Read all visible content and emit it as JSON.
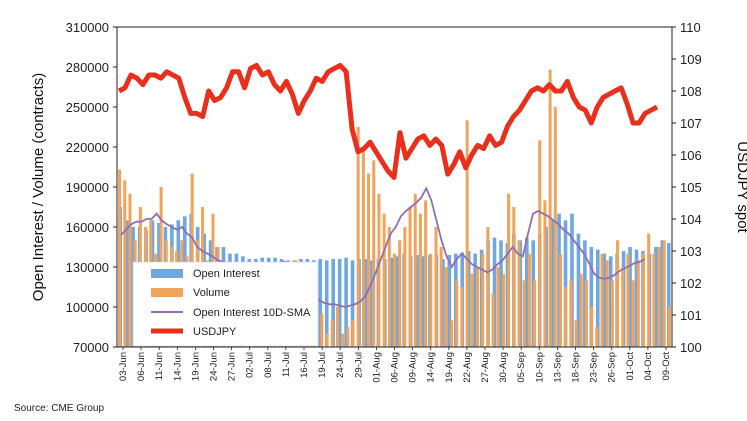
{
  "chart_data": {
    "type": "bar",
    "source": "Source: CME Group",
    "ylabel_left": "Open Interest / Volume (contracts)",
    "ylabel_right": "USDJPY spot",
    "ylim_left": [
      70000,
      310000
    ],
    "yticks_left": [
      "310000",
      "280000",
      "250000",
      "220000",
      "190000",
      "160000",
      "130000",
      "100000",
      "70000"
    ],
    "ylim_right": [
      100,
      110
    ],
    "yticks_right": [
      "110",
      "109",
      "108",
      "107",
      "106",
      "105",
      "104",
      "103",
      "102",
      "101",
      "100"
    ],
    "x_tick_labels": [
      "03-Jun",
      "06-Jun",
      "11-Jun",
      "14-Jun",
      "19-Jun",
      "24-Jun",
      "27-Jun",
      "02-Jul",
      "08-Jul",
      "11-Jul",
      "16-Jul",
      "19-Jul",
      "24-Jul",
      "29-Jul",
      "01-Aug",
      "06-Aug",
      "09-Aug",
      "14-Aug",
      "19-Aug",
      "22-Aug",
      "27-Aug",
      "30-Aug",
      "05-Sep",
      "10-Sep",
      "13-Sep",
      "18-Sep",
      "23-Sep",
      "26-Sep",
      "01-Oct",
      "04-Oct",
      "09-Oct"
    ],
    "legend": {
      "placement": "bottom-left inside plot",
      "items": [
        {
          "label": "Open Interest",
          "kind": "bar",
          "color": "#6fa8e0"
        },
        {
          "label": "Volume",
          "kind": "bar",
          "color": "#f0a35a"
        },
        {
          "label": "Open Interest 10D-SMA",
          "kind": "line",
          "color": "#8e6fb5"
        },
        {
          "label": "USDJPY",
          "kind": "thickline",
          "color": "#e8301c"
        }
      ]
    },
    "grid": false,
    "series": [
      {
        "name": "Open Interest",
        "axis": "left",
        "values": [
          175000,
          165000,
          160000,
          160000,
          158000,
          165000,
          163000,
          160000,
          162000,
          165000,
          168000,
          170000,
          160000,
          155000,
          150000,
          145000,
          145000,
          140000,
          140000,
          138000,
          136000,
          136000,
          137000,
          137000,
          137000,
          136000,
          135000,
          135000,
          136000,
          136000,
          135000,
          136000,
          135000,
          136000,
          136000,
          137000,
          135000,
          136000,
          136000,
          135000,
          136000,
          136000,
          137000,
          138000,
          140000,
          138000,
          139000,
          138000,
          139000,
          139000,
          136000,
          139000,
          140000,
          141000,
          142000,
          140000,
          143000,
          150000,
          152000,
          150000,
          148000,
          155000,
          150000,
          152000,
          150000,
          155000,
          160000,
          165000,
          170000,
          165000,
          170000,
          155000,
          150000,
          145000,
          143000,
          140000,
          138000,
          140000,
          142000,
          145000,
          143000,
          142000,
          140000,
          145000,
          150000,
          148000
        ]
      },
      {
        "name": "Volume",
        "axis": "left",
        "values": [
          203000,
          195000,
          185000,
          150000,
          175000,
          160000,
          165000,
          140000,
          190000,
          150000,
          145000,
          142000,
          150000,
          138000,
          200000,
          150000,
          175000,
          135000,
          170000,
          145000,
          130000,
          125000,
          120000,
          110000,
          115000,
          120000,
          110000,
          115000,
          90000,
          110000,
          100000,
          95000,
          75000,
          95000,
          135000,
          110000,
          90000,
          120000,
          130000,
          95000,
          80000,
          90000,
          100000,
          80000,
          85000,
          90000,
          235000,
          220000,
          200000,
          210000,
          185000,
          170000,
          160000,
          140000,
          150000,
          160000,
          175000,
          185000,
          170000,
          180000,
          140000,
          160000,
          145000,
          130000,
          90000,
          120000,
          115000,
          240000,
          125000,
          130000,
          140000,
          160000,
          110000,
          130000,
          125000,
          185000,
          175000,
          150000,
          120000,
          140000,
          120000,
          225000,
          180000,
          278000,
          250000,
          140000,
          115000,
          120000,
          90000,
          125000,
          120000,
          100000,
          85000,
          140000,
          135000,
          120000,
          150000,
          130000,
          140000,
          120000,
          135000,
          140000,
          155000,
          140000,
          145000,
          150000,
          100000
        ]
      },
      {
        "name": "Open Interest 10D-SMA",
        "axis": "left",
        "values": [
          154000,
          158000,
          162000,
          164000,
          164000,
          166000,
          166000,
          170000,
          165000,
          162000,
          160000,
          158000,
          160000,
          155000,
          152000,
          145000,
          142000,
          140000,
          138000,
          135000,
          134000,
          133000,
          132000,
          131000,
          130000,
          130000,
          130000,
          130000,
          131000,
          131000,
          133000,
          133000,
          134000,
          133000,
          130000,
          125000,
          120000,
          115000,
          110000,
          105000,
          103000,
          102000,
          102000,
          101000,
          100000,
          101000,
          102000,
          104000,
          108000,
          116000,
          125000,
          135000,
          145000,
          155000,
          160000,
          168000,
          172000,
          175000,
          178000,
          182000,
          189000,
          180000,
          165000,
          150000,
          138000,
          130000,
          136000,
          140000,
          136000,
          132000,
          130000,
          128000,
          126000,
          128000,
          132000,
          135000,
          140000,
          145000,
          140000,
          138000,
          155000,
          170000,
          172000,
          170000,
          168000,
          165000,
          162000,
          158000,
          155000,
          150000,
          145000,
          140000,
          133000,
          125000,
          122000,
          121000,
          122000,
          124000,
          127000,
          129000,
          131000,
          133000,
          134000,
          136000
        ]
      },
      {
        "name": "USDJPY",
        "axis": "right",
        "values": [
          108.0,
          108.1,
          108.5,
          108.4,
          108.2,
          108.5,
          108.5,
          108.4,
          108.6,
          108.5,
          108.4,
          107.8,
          107.3,
          107.3,
          107.2,
          108.0,
          107.7,
          107.8,
          108.1,
          108.6,
          108.6,
          108.1,
          108.7,
          108.8,
          108.5,
          108.6,
          108.2,
          108.0,
          108.3,
          107.9,
          107.3,
          107.7,
          108.0,
          108.4,
          108.3,
          108.6,
          108.7,
          108.8,
          108.6,
          106.8,
          106.1,
          106.2,
          106.4,
          106.1,
          105.8,
          105.5,
          105.3,
          106.7,
          105.9,
          106.2,
          106.5,
          106.6,
          106.3,
          106.5,
          106.3,
          105.4,
          105.7,
          106.1,
          105.6,
          106.0,
          106.3,
          106.2,
          106.6,
          106.3,
          106.4,
          106.9,
          107.2,
          107.4,
          107.7,
          108.0,
          108.1,
          108.0,
          108.2,
          108.0,
          108.0,
          108.3,
          107.8,
          107.5,
          107.4,
          107.0,
          107.5,
          107.8,
          107.9,
          108.0,
          108.1,
          107.6,
          107.0,
          107.0,
          107.3,
          107.4,
          107.5
        ]
      }
    ]
  }
}
